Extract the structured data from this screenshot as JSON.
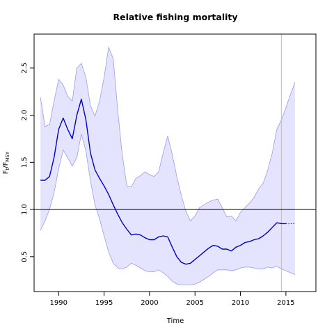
{
  "chart_data": {
    "type": "line",
    "title": "Relative fishing mortality",
    "xlabel": "Time",
    "ylabel": {
      "main": "F",
      "sub_t": "t",
      "slash": "/F",
      "sub_msy": "MSY"
    },
    "xlim": [
      1987.3,
      2018.3
    ],
    "ylim": [
      0.13,
      2.86
    ],
    "x_ticks": [
      1990,
      1995,
      2000,
      2005,
      2010,
      2015
    ],
    "y_ticks": [
      0.5,
      1.0,
      1.5,
      2.0,
      2.5
    ],
    "x_tick_labels": [
      "1990",
      "1995",
      "2000",
      "2005",
      "2010",
      "2015"
    ],
    "y_tick_labels": [
      "0.5",
      "1.0",
      "1.5",
      "2.0",
      "2.5"
    ],
    "reference_line": {
      "y": 1.0,
      "color": "#000000"
    },
    "vertical_marker": {
      "x": 2014.5,
      "color": "#bbbbbb"
    },
    "colors": {
      "line": "#0000cc",
      "band_fill": "#e4e4ff",
      "band_edge": "#9a9aee",
      "axis": "#000000"
    },
    "series": [
      {
        "role": "estimate",
        "style": "solid",
        "x": [
          1988,
          1988.5,
          1989,
          1989.5,
          1990,
          1990.5,
          1991,
          1991.5,
          1992,
          1992.5,
          1993,
          1993.5,
          1994,
          1994.5,
          1995,
          1995.5,
          1996,
          1996.5,
          1997,
          1997.5,
          1998,
          1998.5,
          1999,
          1999.5,
          2000,
          2000.5,
          2001,
          2001.5,
          2002,
          2002.5,
          2003,
          2003.5,
          2004,
          2004.5,
          2005,
          2005.5,
          2006,
          2006.5,
          2007,
          2007.5,
          2008,
          2008.5,
          2009,
          2009.5,
          2010,
          2010.5,
          2011,
          2011.5,
          2012,
          2012.5,
          2013,
          2013.5,
          2014,
          2014.5,
          2015
        ],
        "values": [
          1.31,
          1.31,
          1.35,
          1.55,
          1.85,
          1.97,
          1.85,
          1.75,
          2.0,
          2.17,
          1.95,
          1.6,
          1.42,
          1.33,
          1.25,
          1.16,
          1.05,
          0.95,
          0.86,
          0.79,
          0.73,
          0.74,
          0.73,
          0.7,
          0.68,
          0.68,
          0.71,
          0.72,
          0.71,
          0.6,
          0.5,
          0.44,
          0.42,
          0.43,
          0.47,
          0.51,
          0.55,
          0.59,
          0.62,
          0.61,
          0.58,
          0.58,
          0.56,
          0.6,
          0.62,
          0.65,
          0.66,
          0.68,
          0.69,
          0.72,
          0.76,
          0.81,
          0.86,
          0.85,
          0.85
        ]
      },
      {
        "role": "projection",
        "style": "dotted",
        "x": [
          2015,
          2016
        ],
        "values": [
          0.85,
          0.85
        ]
      }
    ],
    "band": {
      "x": [
        1988,
        1988.5,
        1989,
        1989.5,
        1990,
        1990.5,
        1991,
        1991.5,
        1992,
        1992.5,
        1993,
        1993.5,
        1994,
        1994.5,
        1995,
        1995.5,
        1996,
        1996.5,
        1997,
        1997.5,
        1998,
        1998.5,
        1999,
        1999.5,
        2000,
        2000.5,
        2001,
        2001.5,
        2002,
        2002.5,
        2003,
        2003.5,
        2004,
        2004.5,
        2005,
        2005.5,
        2006,
        2006.5,
        2007,
        2007.5,
        2008,
        2008.5,
        2009,
        2009.5,
        2010,
        2010.5,
        2011,
        2011.5,
        2012,
        2012.5,
        2013,
        2013.5,
        2014,
        2014.5,
        2015,
        2015.5,
        2016
      ],
      "upper": [
        2.19,
        1.88,
        1.9,
        2.15,
        2.38,
        2.32,
        2.2,
        2.15,
        2.5,
        2.55,
        2.4,
        2.1,
        1.99,
        2.15,
        2.4,
        2.72,
        2.6,
        2.05,
        1.58,
        1.25,
        1.24,
        1.33,
        1.36,
        1.4,
        1.37,
        1.35,
        1.4,
        1.6,
        1.78,
        1.58,
        1.35,
        1.15,
        0.98,
        0.88,
        0.93,
        1.02,
        1.05,
        1.08,
        1.1,
        1.11,
        1.02,
        0.92,
        0.93,
        0.88,
        0.97,
        1.02,
        1.07,
        1.13,
        1.22,
        1.28,
        1.42,
        1.6,
        1.85,
        1.95,
        2.08,
        2.22,
        2.35
      ],
      "lower": [
        0.78,
        0.88,
        1.0,
        1.18,
        1.43,
        1.63,
        1.55,
        1.46,
        1.55,
        1.8,
        1.62,
        1.3,
        1.05,
        0.9,
        0.72,
        0.55,
        0.43,
        0.38,
        0.37,
        0.39,
        0.43,
        0.41,
        0.38,
        0.35,
        0.34,
        0.34,
        0.36,
        0.33,
        0.29,
        0.24,
        0.21,
        0.2,
        0.2,
        0.2,
        0.21,
        0.23,
        0.26,
        0.29,
        0.33,
        0.36,
        0.36,
        0.36,
        0.35,
        0.36,
        0.38,
        0.39,
        0.39,
        0.38,
        0.37,
        0.37,
        0.39,
        0.38,
        0.4,
        0.37,
        0.35,
        0.33,
        0.31
      ]
    }
  }
}
